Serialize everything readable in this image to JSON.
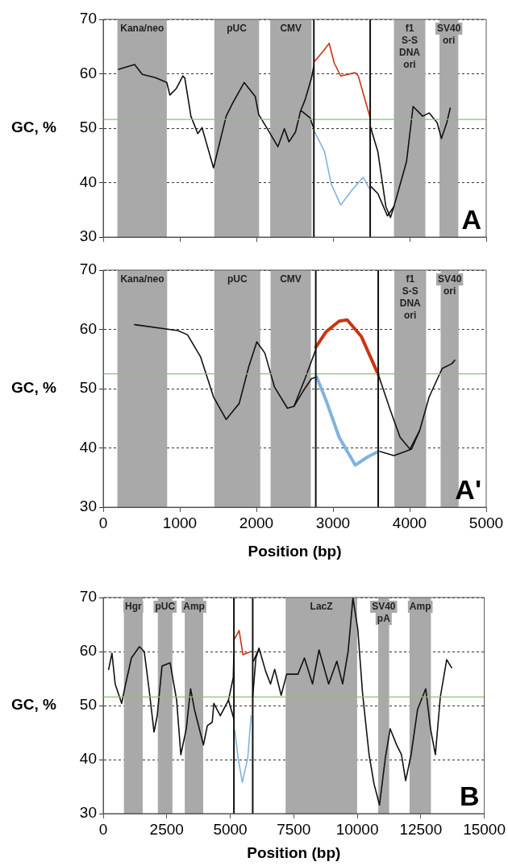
{
  "chart_data": [
    {
      "type": "line",
      "ylabel": "GC, %",
      "xlim": [
        0,
        5000
      ],
      "xticks": [
        {
          "value": 0,
          "label": null
        },
        {
          "value": 1000,
          "label": null
        },
        {
          "value": 2000,
          "label": null
        },
        {
          "value": 3000,
          "label": null
        },
        {
          "value": 4000,
          "label": null
        },
        {
          "value": 5000,
          "label": null
        }
      ],
      "ylim": [
        30,
        70
      ],
      "yticks": [
        30,
        40,
        50,
        60,
        70
      ],
      "tick_labels": "y",
      "grid": "y",
      "marker": "none",
      "annotations": [
        "A"
      ],
      "series": [
        {
          "color": "#111111",
          "x": [
            200,
            410,
            510,
            680,
            830,
            870,
            955,
            1040,
            1065,
            1145,
            1235,
            1290,
            1440,
            1605,
            1690,
            1840,
            1985,
            2030,
            2155,
            2280,
            2365,
            2425,
            2510,
            2575,
            2635,
            2720,
            2750
          ],
          "values": [
            60.8,
            61.7,
            59.9,
            59.3,
            58.4,
            56.1,
            57.3,
            59.6,
            59.2,
            52.2,
            49,
            50.1,
            42.7,
            52.2,
            54.6,
            58.4,
            55.8,
            52.5,
            49.6,
            46.6,
            49.9,
            47.5,
            49.3,
            53.1,
            55.2,
            59.3,
            61.5
          ]
        },
        {
          "color": "#111111",
          "x": [
            2575,
            2595,
            2700,
            2750
          ],
          "values": [
            53.1,
            53.1,
            51.9,
            49.9
          ]
        },
        {
          "color": "#cc3311",
          "x": [
            2760,
            2870,
            2950,
            3015,
            3100,
            3290,
            3330,
            3485
          ],
          "values": [
            62.3,
            64.1,
            65.6,
            62,
            59.6,
            60.2,
            59.6,
            51.9
          ]
        },
        {
          "color": "#7fb3e0",
          "x": [
            2760,
            2890,
            2975,
            3100,
            3245,
            3395,
            3485
          ],
          "values": [
            49.3,
            45.7,
            39.8,
            35.9,
            38.6,
            41,
            38.6
          ]
        },
        {
          "color": "#111111",
          "x": [
            3485,
            3585,
            3690,
            3750,
            3795,
            3960,
            4045,
            4170,
            4255,
            4360,
            4415,
            4485,
            4530
          ],
          "values": [
            50.4,
            45.7,
            35.6,
            33.6,
            35.6,
            43.9,
            54,
            52.2,
            52.8,
            51,
            48.1,
            51,
            53.7
          ]
        },
        {
          "color": "#111111",
          "x": [
            3500,
            3585,
            3710,
            3795
          ],
          "values": [
            39.2,
            38,
            33.9,
            35.6
          ]
        }
      ],
      "ref_lines": [
        {
          "axis": "y",
          "value": 51.6,
          "color": "#8dc26f"
        },
        {
          "axis": "x",
          "value": 2750,
          "color": "#111111"
        },
        {
          "axis": "x",
          "value": 3485,
          "color": "#111111"
        }
      ],
      "bands": [
        {
          "axis": "x",
          "from": 185,
          "to": 830,
          "label": "Kana/neo",
          "color": "#a9a9a9"
        },
        {
          "axis": "x",
          "from": 1450,
          "to": 2035,
          "label": "pUC",
          "color": "#a9a9a9"
        },
        {
          "axis": "x",
          "from": 2180,
          "to": 2720,
          "label": "CMV",
          "color": "#a9a9a9"
        },
        {
          "axis": "x",
          "from": 3795,
          "to": 4205,
          "label": "f1\nS-S\nDNA\nori",
          "color": "#a9a9a9"
        },
        {
          "axis": "x",
          "from": 4390,
          "to": 4635,
          "label": "SV40\nori",
          "color": "#a9a9a9"
        }
      ]
    },
    {
      "type": "line",
      "ylabel": "GC, %",
      "xlabel": "Position (bp)",
      "xlim": [
        0,
        5000
      ],
      "xticks": [
        0,
        1000,
        2000,
        3000,
        4000,
        5000
      ],
      "ylim": [
        30,
        70
      ],
      "yticks": [
        30,
        40,
        50,
        60,
        70
      ],
      "grid": "y",
      "marker": "none",
      "annotations": [
        "A'"
      ],
      "series": [
        {
          "color": "#111111",
          "x": [
            410,
            975,
            1100,
            1270,
            1440,
            1605,
            1775,
            1900,
            2005,
            2110,
            2235,
            2405,
            2490,
            2635,
            2775
          ],
          "values": [
            60.8,
            59.8,
            59.1,
            55.4,
            48.6,
            44.8,
            47.5,
            53.7,
            57.9,
            56,
            50.3,
            46.7,
            47,
            51.7,
            56.6
          ]
        },
        {
          "color": "#111111",
          "x": [
            2490,
            2615,
            2720,
            2775
          ],
          "values": [
            47,
            49.7,
            51.7,
            51.9
          ]
        },
        {
          "color": "#cc3311",
          "x": [
            2775,
            2910,
            3080,
            3185,
            3370,
            3590
          ],
          "values": [
            57,
            59.6,
            61.4,
            61.6,
            58.8,
            52.4
          ]
        },
        {
          "color": "#7fb3e0",
          "x": [
            2785,
            2910,
            3080,
            3290,
            3455,
            3590
          ],
          "values": [
            52,
            48,
            41.8,
            37.1,
            38.5,
            39.4
          ]
        },
        {
          "color": "#111111",
          "x": [
            3590,
            3750,
            3875,
            4005,
            4130,
            4255,
            4425,
            4550,
            4590
          ],
          "values": [
            52.4,
            46.3,
            41.8,
            39.8,
            42.9,
            48.6,
            53.4,
            54.2,
            54.8
          ]
        },
        {
          "color": "#111111",
          "x": [
            3590,
            3795,
            3920,
            4025,
            4130
          ],
          "values": [
            39.5,
            38.7,
            39.3,
            39.8,
            42.9
          ]
        }
      ],
      "ref_lines": [
        {
          "axis": "y",
          "value": 52.5,
          "color": "#8dc26f"
        },
        {
          "axis": "x",
          "value": 2775,
          "color": "#111111"
        },
        {
          "axis": "x",
          "value": 3590,
          "color": "#111111"
        }
      ],
      "bands": [
        {
          "axis": "x",
          "from": 185,
          "to": 835,
          "label": "Kana/neo",
          "color": "#a9a9a9"
        },
        {
          "axis": "x",
          "from": 1450,
          "to": 2050,
          "label": "pUC",
          "color": "#a9a9a9"
        },
        {
          "axis": "x",
          "from": 2185,
          "to": 2710,
          "label": "CMV",
          "color": "#a9a9a9"
        },
        {
          "axis": "x",
          "from": 3800,
          "to": 4215,
          "label": "f1\nS-S\nDNA\nori",
          "color": "#a9a9a9"
        },
        {
          "axis": "x",
          "from": 4405,
          "to": 4640,
          "label": "SV40\nori",
          "color": "#a9a9a9"
        }
      ]
    },
    {
      "type": "line",
      "ylabel": "GC, %",
      "xlabel": "Position (bp)",
      "xlim": [
        0,
        15000
      ],
      "xticks": [
        0,
        2500,
        5000,
        7500,
        10000,
        12500,
        15000
      ],
      "ylim": [
        30,
        70
      ],
      "yticks": [
        30,
        40,
        50,
        60,
        70
      ],
      "grid": "y",
      "marker": "none",
      "annotations": [
        "B"
      ],
      "series": [
        {
          "color": "#111111",
          "x": [
            215,
            345,
            470,
            725,
            855,
            1110,
            1425,
            1615,
            1810,
            2000,
            2125,
            2315,
            2635,
            2890,
            3055,
            3270,
            3440,
            3590,
            3945,
            4100,
            4290,
            4355,
            4610,
            4930,
            5120,
            5145
          ],
          "values": [
            56.7,
            59.7,
            54,
            50.4,
            53.4,
            58.8,
            60.9,
            60,
            52.8,
            45.1,
            48.1,
            57.3,
            57.9,
            51,
            40.9,
            45.7,
            53.1,
            49.3,
            42.7,
            46.3,
            46.9,
            50.4,
            48.1,
            51,
            55.2,
            60
          ]
        },
        {
          "color": "#111111",
          "x": [
            4930,
            5145
          ],
          "values": [
            51,
            47.5
          ]
        },
        {
          "color": "#cc3311",
          "x": [
            5180,
            5350,
            5500,
            5820,
            5860
          ],
          "values": [
            62.4,
            63.9,
            59.4,
            60,
            60
          ]
        },
        {
          "color": "#7fb3e0",
          "x": [
            5180,
            5310,
            5475,
            5690,
            5820
          ],
          "values": [
            45.4,
            40.3,
            35.8,
            40.3,
            48.1
          ]
        },
        {
          "color": "#111111",
          "x": [
            5910,
            6135,
            6390,
            6585,
            6750,
            7005,
            7220,
            7665,
            7920,
            8240,
            8495,
            8875,
            9195,
            9425,
            9640,
            9830,
            10020,
            10210,
            10465,
            10660,
            10875,
            11105,
            11295,
            11550,
            11740,
            11905,
            12120,
            12375,
            12695,
            12885,
            13075,
            13270,
            13520,
            13715
          ],
          "values": [
            58.2,
            60.6,
            56.4,
            54,
            56.7,
            51.9,
            55.8,
            55.8,
            58.8,
            54,
            60.3,
            54,
            58.2,
            54,
            60,
            69.9,
            64.2,
            52.2,
            40.9,
            35.5,
            31.6,
            40.3,
            45.7,
            42.7,
            40.9,
            36.1,
            40.9,
            49.3,
            53.1,
            45.7,
            40.9,
            51.6,
            58.5,
            57
          ]
        },
        {
          "color": "#111111",
          "x": [
            5885,
            6010,
            6135
          ],
          "values": [
            51.6,
            58.8,
            60.6
          ]
        }
      ],
      "ref_lines": [
        {
          "axis": "y",
          "value": 51.6,
          "color": "#8dc26f"
        },
        {
          "axis": "x",
          "value": 5145,
          "color": "#111111"
        },
        {
          "axis": "x",
          "value": 5885,
          "color": "#111111"
        }
      ],
      "bands": [
        {
          "axis": "x",
          "from": 815,
          "to": 1555,
          "label": "Hgr",
          "color": "#a9a9a9"
        },
        {
          "axis": "x",
          "from": 2150,
          "to": 2725,
          "label": "pUC",
          "color": "#a9a9a9"
        },
        {
          "axis": "x",
          "from": 3210,
          "to": 3935,
          "label": "Amp",
          "color": "#a9a9a9"
        },
        {
          "axis": "x",
          "from": 7180,
          "to": 9995,
          "label": "LacZ",
          "color": "#a9a9a9"
        },
        {
          "axis": "x",
          "from": 10825,
          "to": 11255,
          "label": "SV40\npA",
          "color": "#a9a9a9"
        },
        {
          "axis": "x",
          "from": 12060,
          "to": 12900,
          "label": "Amp",
          "color": "#a9a9a9"
        }
      ]
    }
  ]
}
